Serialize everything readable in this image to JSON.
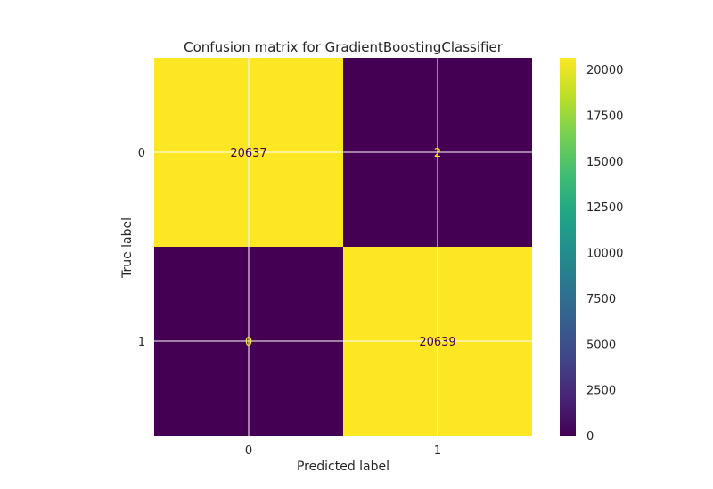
{
  "chart_data": {
    "type": "heatmap",
    "title": "Confusion matrix for GradientBoostingClassifier",
    "xlabel": "Predicted label",
    "ylabel": "True label",
    "x_categories": [
      "0",
      "1"
    ],
    "y_categories": [
      "0",
      "1"
    ],
    "values": [
      [
        20637,
        2
      ],
      [
        0,
        20639
      ]
    ],
    "value_labels": [
      [
        "20637",
        "2"
      ],
      [
        "0",
        "20639"
      ]
    ],
    "colormap": "viridis",
    "colorbar": {
      "min": 0,
      "max": 20639,
      "ticks": [
        0,
        2500,
        5000,
        7500,
        10000,
        12500,
        15000,
        17500,
        20000
      ],
      "tick_labels": [
        "0",
        "2500",
        "5000",
        "7500",
        "10000",
        "12500",
        "15000",
        "17500",
        "20000"
      ]
    },
    "grid": true,
    "colors": {
      "low": "#440154",
      "high": "#fde725",
      "text_on_dark": "#fde725",
      "text_on_light": "#440154"
    }
  }
}
